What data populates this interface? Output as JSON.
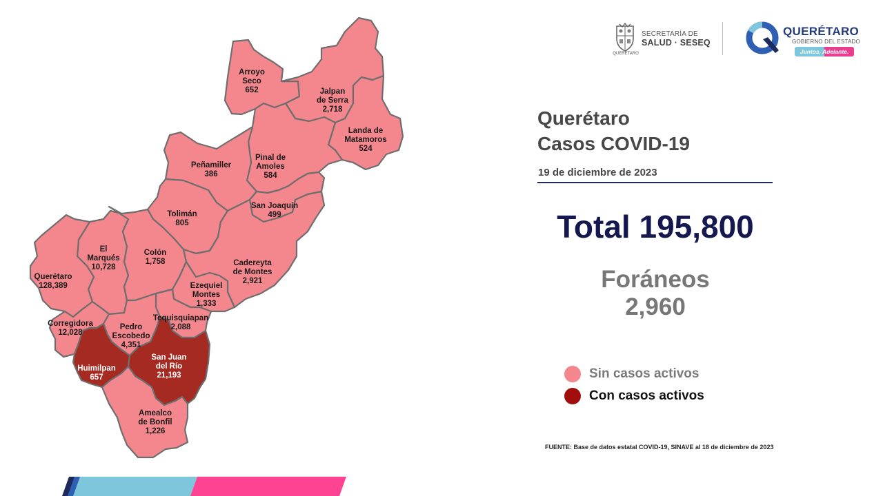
{
  "header": {
    "seseq_line1": "SECRETARÍA DE",
    "seseq_line2": "SALUD · SESEQ",
    "seseq_state": "QUERÉTARO",
    "qro_name": "QUERÉTARO",
    "qro_sub": "GOBIERNO DEL ESTADO",
    "qro_slogan": "Juntos, Adelante."
  },
  "title_line1": "Querétaro",
  "title_line2": "Casos COVID-19",
  "date": "19 de diciembre de 2023",
  "total": "Total 195,800",
  "foraneos_label": "Foráneos",
  "foraneos_value": "2,960",
  "legend": [
    {
      "label": "Sin casos activos",
      "color": "#f4868d",
      "text_color": "#7a7a7a"
    },
    {
      "label": "Con casos activos",
      "color": "#a00e0e",
      "text_color": "#111111"
    }
  ],
  "source": "FUENTE: Base de datos estatal  COVID-19,  SINAVE  al 18 de diciembre de 2023",
  "colors": {
    "sin_casos": "#f4868d",
    "con_casos": "#a52a22",
    "border": "#6e6e6e",
    "bar_dark": "#1f2a5c",
    "bar_blue": "#7ec6db",
    "bar_pink": "#ff4393"
  },
  "municipios": [
    {
      "id": "arroyo-seco",
      "name": [
        "Arroyo",
        "Seco"
      ],
      "cases": "652",
      "active": false
    },
    {
      "id": "jalpan-de-serra",
      "name": [
        "Jalpan",
        "de Serra"
      ],
      "cases": "2,718",
      "active": false
    },
    {
      "id": "landa-de-matamoros",
      "name": [
        "Landa de",
        "Matamoros"
      ],
      "cases": "524",
      "active": false
    },
    {
      "id": "pinal-de-amoles",
      "name": [
        "Pinal de",
        "Amoles"
      ],
      "cases": "584",
      "active": false
    },
    {
      "id": "penamiller",
      "name": [
        "Peñamiller"
      ],
      "cases": "386",
      "active": false
    },
    {
      "id": "san-joaquin",
      "name": [
        "San Joaquín"
      ],
      "cases": "499",
      "active": false
    },
    {
      "id": "toliman",
      "name": [
        "Tolimán"
      ],
      "cases": "805",
      "active": false
    },
    {
      "id": "el-marques",
      "name": [
        "El",
        "Marqués"
      ],
      "cases": "10,728",
      "active": false
    },
    {
      "id": "colon",
      "name": [
        "Colón"
      ],
      "cases": "1,758",
      "active": false
    },
    {
      "id": "cadereyta-de-montes",
      "name": [
        "Cadereyta",
        "de Montes"
      ],
      "cases": "2,921",
      "active": false
    },
    {
      "id": "queretaro",
      "name": [
        "Querétaro"
      ],
      "cases": "128,389",
      "active": false
    },
    {
      "id": "ezequiel-montes",
      "name": [
        "Ezequiel",
        "Montes"
      ],
      "cases": "1,333",
      "active": false
    },
    {
      "id": "tequisquiapan",
      "name": [
        "Tequisquiapan"
      ],
      "cases": "2,088",
      "active": false
    },
    {
      "id": "corregidora",
      "name": [
        "Corregidora"
      ],
      "cases": "12,028",
      "active": false
    },
    {
      "id": "pedro-escobedo",
      "name": [
        "Pedro",
        "Escobedo"
      ],
      "cases": "4,351",
      "active": false
    },
    {
      "id": "huimilpan",
      "name": [
        "Huimilpan"
      ],
      "cases": "657",
      "active": true
    },
    {
      "id": "san-juan-del-rio",
      "name": [
        "San Juan",
        "del Río"
      ],
      "cases": "21,193",
      "active": true
    },
    {
      "id": "amealco-de-bonfil",
      "name": [
        "Amealco",
        "de Bonfil"
      ],
      "cases": "1,226",
      "active": false
    }
  ]
}
